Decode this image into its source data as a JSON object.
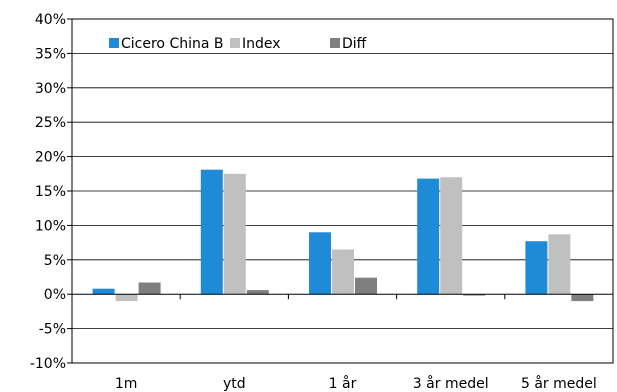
{
  "chart_data": {
    "type": "bar",
    "title": "",
    "xlabel": "",
    "ylabel": "",
    "categories": [
      "1m",
      "ytd",
      "1 år",
      "3 år medel",
      "5 år medel"
    ],
    "series": [
      {
        "name": "Cicero China B",
        "color": "#1f8bd6",
        "values": [
          0.8,
          18.1,
          9.0,
          16.8,
          7.7
        ]
      },
      {
        "name": "Index",
        "color": "#c0c0c0",
        "values": [
          -1.0,
          17.5,
          6.5,
          17.0,
          8.7
        ]
      },
      {
        "name": "Diff",
        "color": "#7f7f7f",
        "values": [
          1.7,
          0.6,
          2.4,
          -0.2,
          -1.0
        ]
      }
    ],
    "ylim": [
      -10,
      40
    ],
    "yticks": [
      -10,
      -5,
      0,
      5,
      10,
      15,
      20,
      25,
      30,
      35,
      40
    ],
    "ytick_labels": [
      "-10%",
      "-5%",
      "0%",
      "5%",
      "10%",
      "15%",
      "20%",
      "25%",
      "30%",
      "35%",
      "40%"
    ],
    "grid": true,
    "legend_position": "top-left"
  }
}
